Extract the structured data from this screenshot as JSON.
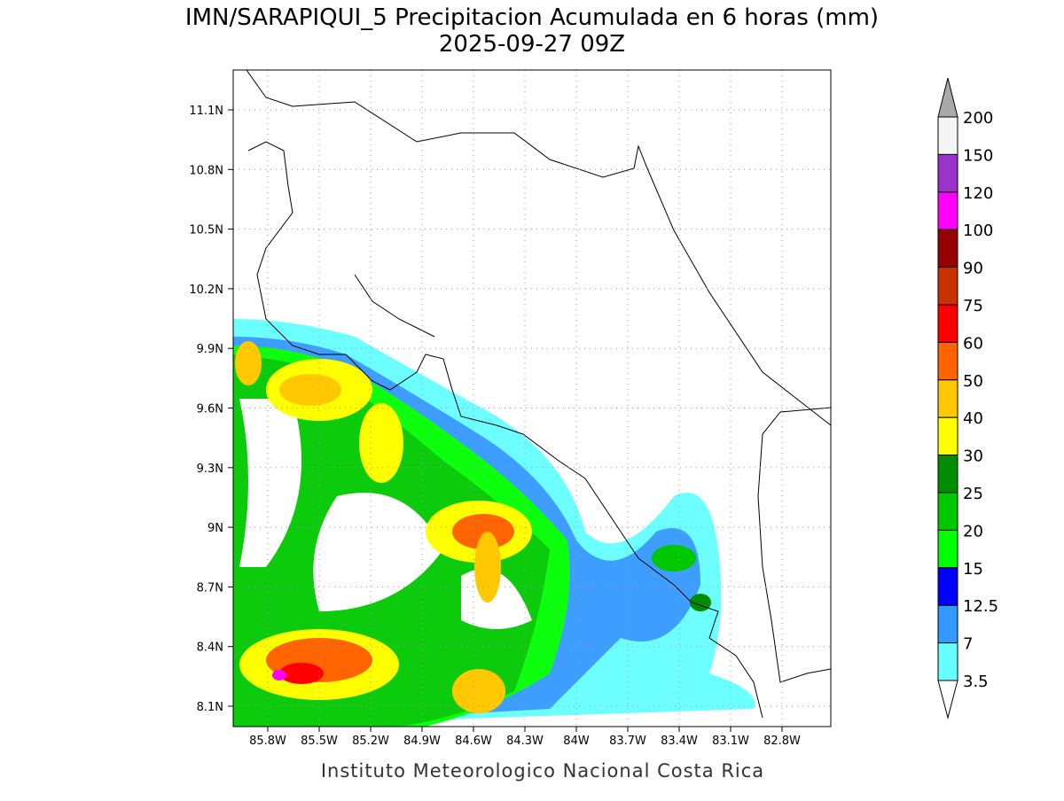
{
  "header": {
    "title": "IMN/SARAPIQUI_5 Precipitacion Acumulada en 6 horas (mm)",
    "subtitle": "2025-09-27 09Z"
  },
  "map": {
    "lat_labels": [
      "11.1N",
      "10.8N",
      "10.5N",
      "10.2N",
      "9.9N",
      "9.6N",
      "9.3N",
      "9N",
      "8.7N",
      "8.4N",
      "8.1N"
    ],
    "lon_labels": [
      "85.8W",
      "85.5W",
      "85.2W",
      "84.9W",
      "84.6W",
      "84.3W",
      "84W",
      "83.7W",
      "83.4W",
      "83.1W",
      "82.8W"
    ]
  },
  "colorbar": {
    "labels": [
      "200",
      "150",
      "120",
      "100",
      "90",
      "75",
      "60",
      "50",
      "40",
      "30",
      "25",
      "20",
      "15",
      "12.5",
      "7",
      "3.5"
    ],
    "colors": [
      "#f5f5f5",
      "#9933cc",
      "#ff00ff",
      "#960000",
      "#c83200",
      "#ff0000",
      "#ff6400",
      "#ffc800",
      "#ffff00",
      "#008c00",
      "#00c800",
      "#00ff00",
      "#0000ff",
      "#3399ff",
      "#66ffff"
    ]
  },
  "footer": "Instituto Meteorologico Nacional Costa Rica"
}
